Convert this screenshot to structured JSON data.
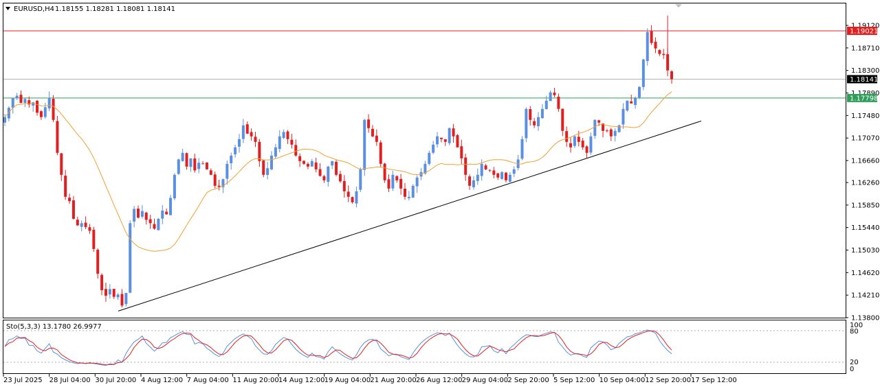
{
  "header": {
    "symbol_tf": "EURUSD,H4",
    "ohlc": "1.18155 1.18281 1.18081 1.18141"
  },
  "oscillator": {
    "label": "Sto(5,3,3) 13.1780 26.9977",
    "levels": [
      "100",
      "80",
      "20",
      "0"
    ]
  },
  "chart_data": {
    "type": "candlestick",
    "y_ticks": [
      "1.19120",
      "1.18710",
      "1.18300",
      "1.17890",
      "1.17480",
      "1.17070",
      "1.16660",
      "1.16260",
      "1.15850",
      "1.15440",
      "1.15030",
      "1.14620",
      "1.14210",
      "1.13800"
    ],
    "ylim": [
      1.138,
      1.1952
    ],
    "x_ticks": [
      "23 Jul 2025",
      "28 Jul 04:00",
      "30 Jul 20:00",
      "4 Aug 12:00",
      "7 Aug 04:00",
      "11 Aug 20:00",
      "14 Aug 12:00",
      "19 Aug 04:00",
      "21 Aug 20:00",
      "26 Aug 12:00",
      "29 Aug 04:00",
      "2 Sep 20:00",
      "5 Sep 12:00",
      "10 Sep 04:00",
      "12 Sep 20:00",
      "17 Sep 12:00"
    ],
    "levels": [
      {
        "price": 1.19021,
        "label": "1.19021",
        "color": "#e02020"
      },
      {
        "price": 1.18141,
        "label": "1.18141",
        "color": "#000000"
      },
      {
        "price": 1.17798,
        "label": "1.17798",
        "color": "#2e9e5a"
      }
    ],
    "trendline": {
      "from": [
        1.1392
      ],
      "to": [
        1.1738
      ]
    },
    "ma_color": "#f0a030",
    "bull_color": "#5b8fe0",
    "bear_color": "#e02020",
    "close_path": [
      1.1745,
      1.1762,
      1.1779,
      1.1784,
      1.1771,
      1.1778,
      1.1768,
      1.1772,
      1.1753,
      1.1745,
      1.1763,
      1.178,
      1.174,
      1.168,
      1.164,
      1.16,
      1.1592,
      1.156,
      1.1548,
      1.1552,
      1.1545,
      1.1538,
      1.1505,
      1.146,
      1.143,
      1.142,
      1.1432,
      1.1418,
      1.1422,
      1.1402,
      1.1425,
      1.1552,
      1.1578,
      1.1562,
      1.1574,
      1.1558,
      1.1552,
      1.1542,
      1.156,
      1.1575,
      1.1568,
      1.1598,
      1.164,
      1.1668,
      1.168,
      1.1655,
      1.167,
      1.1648,
      1.1662,
      1.166,
      1.165,
      1.164,
      1.162,
      1.1618,
      1.1632,
      1.166,
      1.1675,
      1.169,
      1.1705,
      1.173,
      1.1715,
      1.171,
      1.17,
      1.1665,
      1.164,
      1.1652,
      1.1675,
      1.169,
      1.171,
      1.1718,
      1.1705,
      1.1695,
      1.1675,
      1.1665,
      1.166,
      1.1655,
      1.1665,
      1.165,
      1.1638,
      1.163,
      1.1655,
      1.1665,
      1.164,
      1.1628,
      1.161,
      1.16,
      1.159,
      1.161,
      1.165,
      1.174,
      1.1725,
      1.171,
      1.17,
      1.166,
      1.163,
      1.1615,
      1.164,
      1.163,
      1.1615,
      1.16,
      1.16,
      1.162,
      1.1635,
      1.1645,
      1.166,
      1.168,
      1.1695,
      1.171,
      1.1705,
      1.17,
      1.1725,
      1.171,
      1.169,
      1.167,
      1.164,
      1.162,
      1.163,
      1.164,
      1.166,
      1.165,
      1.1648,
      1.164,
      1.1635,
      1.1645,
      1.163,
      1.164,
      1.165,
      1.1668,
      1.1705,
      1.176,
      1.174,
      1.173,
      1.1745,
      1.176,
      1.1775,
      1.179,
      1.1785,
      1.176,
      1.172,
      1.17,
      1.169,
      1.171,
      1.17,
      1.169,
      1.168,
      1.171,
      1.174,
      1.1735,
      1.172,
      1.172,
      1.171,
      1.172,
      1.173,
      1.176,
      1.1775,
      1.177,
      1.178,
      1.18,
      1.185,
      1.19,
      1.188,
      1.187,
      1.186,
      1.1858,
      1.183,
      1.1814
    ]
  }
}
